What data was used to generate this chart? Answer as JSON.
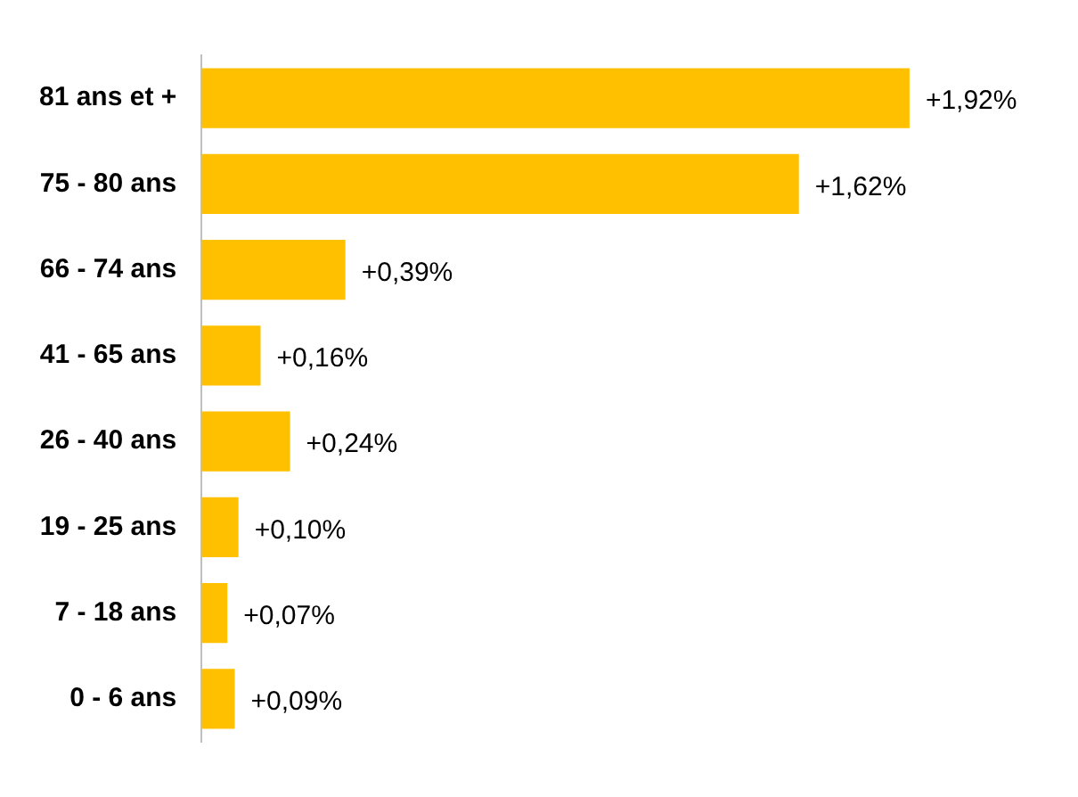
{
  "chart_data": {
    "type": "bar",
    "orientation": "horizontal",
    "categories": [
      "81 ans et +",
      "75 - 80 ans",
      "66 - 74 ans",
      "41 - 65 ans",
      "26 - 40 ans",
      "19 - 25 ans",
      "7 - 18 ans",
      "0 - 6 ans"
    ],
    "values": [
      1.92,
      1.62,
      0.39,
      0.16,
      0.24,
      0.1,
      0.07,
      0.09
    ],
    "value_labels": [
      "+1,92%",
      "+1,62%",
      "+0,39%",
      "+0,16%",
      "+0,24%",
      "+0,10%",
      "+0,07%",
      "+0,09%"
    ],
    "color": "#ffc000",
    "grid": false,
    "legend": false
  }
}
